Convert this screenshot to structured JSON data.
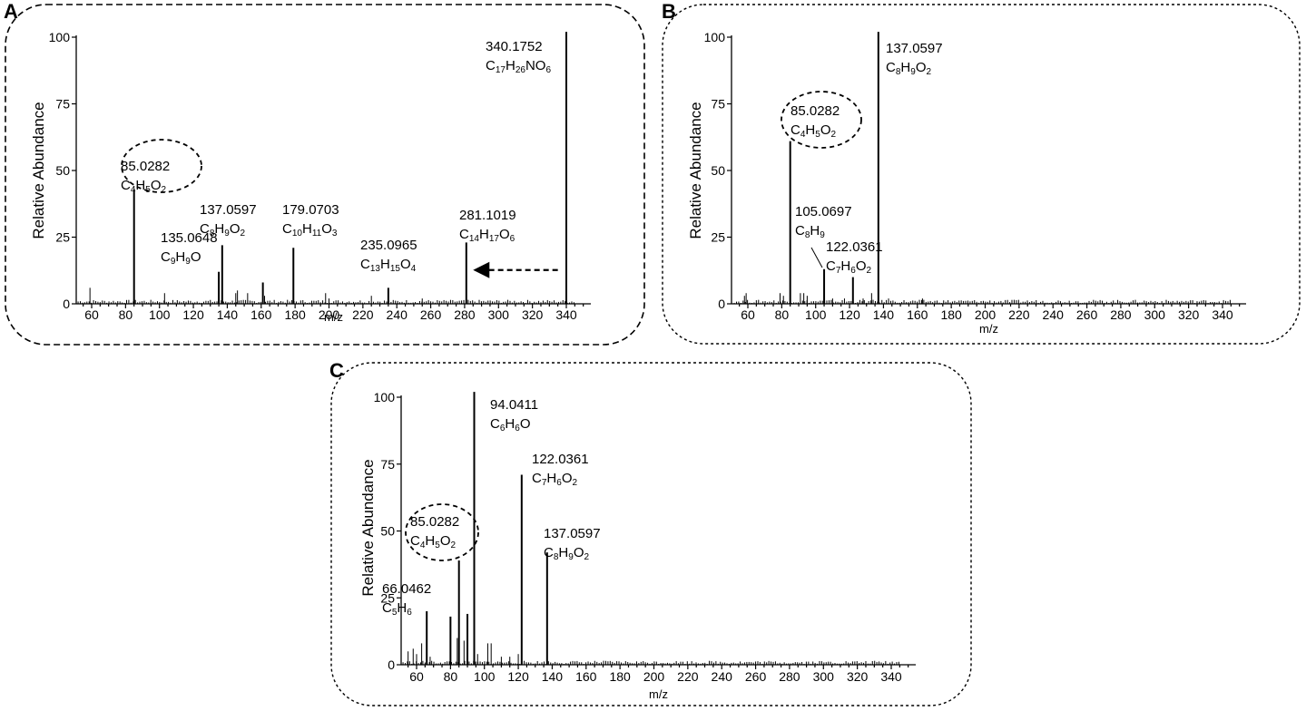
{
  "chart_data": [
    {
      "panel": "A",
      "type": "bar",
      "ylabel": "Relative Abundance",
      "xlabel": "m/z",
      "xlim": [
        50,
        352
      ],
      "ylim": [
        0,
        100
      ],
      "xticks": [
        60,
        80,
        100,
        120,
        140,
        160,
        180,
        200,
        220,
        240,
        260,
        280,
        300,
        320,
        340
      ],
      "yticks": [
        0,
        25,
        50,
        75,
        100
      ],
      "peaks": [
        {
          "x": 85,
          "y": 43
        },
        {
          "x": 135,
          "y": 12
        },
        {
          "x": 137,
          "y": 22
        },
        {
          "x": 179,
          "y": 21
        },
        {
          "x": 161,
          "y": 8
        },
        {
          "x": 235,
          "y": 6
        },
        {
          "x": 281,
          "y": 23
        },
        {
          "x": 340,
          "y": 102
        }
      ],
      "minor_peaks": [
        {
          "x": 59,
          "y": 6
        },
        {
          "x": 103,
          "y": 4
        },
        {
          "x": 145,
          "y": 4
        },
        {
          "x": 146,
          "y": 5
        },
        {
          "x": 152,
          "y": 4
        },
        {
          "x": 162,
          "y": 3
        },
        {
          "x": 198,
          "y": 4
        },
        {
          "x": 200,
          "y": 2
        },
        {
          "x": 225,
          "y": 3
        },
        {
          "x": 255,
          "y": 2
        }
      ],
      "annotations": [
        {
          "x": 85,
          "y": 60,
          "lines": [
            [
              {
                "t": "85.0282"
              }
            ],
            [
              {
                "t": "C"
              },
              {
                "t": "4",
                "s": 1
              },
              {
                "t": "H"
              },
              {
                "t": "5",
                "s": 1
              },
              {
                "t": "O"
              },
              {
                "t": "2",
                "s": 1
              }
            ]
          ],
          "circled": true
        },
        {
          "x": 137,
          "y": 40,
          "lines": [
            [
              {
                "t": "137.0597"
              }
            ],
            [
              {
                "t": "C"
              },
              {
                "t": "8",
                "s": 1
              },
              {
                "t": "H"
              },
              {
                "t": "9",
                "s": 1
              },
              {
                "t": "O"
              },
              {
                "t": "2",
                "s": 1
              }
            ]
          ]
        },
        {
          "x": 135,
          "y": 20,
          "lines": [
            [
              {
                "t": "135.0648"
              }
            ],
            [
              {
                "t": "C"
              },
              {
                "t": "9",
                "s": 1
              },
              {
                "t": "H"
              },
              {
                "t": "9",
                "s": 1
              },
              {
                "t": "O"
              }
            ]
          ]
        },
        {
          "x": 179,
          "y": 40,
          "lines": [
            [
              {
                "t": "179.0703"
              }
            ],
            [
              {
                "t": "C"
              },
              {
                "t": "10",
                "s": 1
              },
              {
                "t": "H"
              },
              {
                "t": "11",
                "s": 1
              },
              {
                "t": "O"
              },
              {
                "t": "3",
                "s": 1
              }
            ]
          ]
        },
        {
          "x": 235,
          "y": 20,
          "lines": [
            [
              {
                "t": "235.0965"
              }
            ],
            [
              {
                "t": "C"
              },
              {
                "t": "13",
                "s": 1
              },
              {
                "t": "H"
              },
              {
                "t": "15",
                "s": 1
              },
              {
                "t": "O"
              },
              {
                "t": "4",
                "s": 1
              }
            ]
          ]
        },
        {
          "x": 281,
          "y": 30,
          "lines": [
            [
              {
                "t": "281.1019"
              }
            ],
            [
              {
                "t": "C"
              },
              {
                "t": "14",
                "s": 1
              },
              {
                "t": "H"
              },
              {
                "t": "17",
                "s": 1
              },
              {
                "t": "O"
              },
              {
                "t": "6",
                "s": 1
              }
            ]
          ]
        },
        {
          "x": 340,
          "y": 90,
          "lines": [
            [
              {
                "t": "340.1752"
              }
            ],
            [
              {
                "t": "C"
              },
              {
                "t": "17",
                "s": 1
              },
              {
                "t": "H"
              },
              {
                "t": "26",
                "s": 1
              },
              {
                "t": "N"
              },
              {
                "t": "O"
              },
              {
                "t": "6",
                "s": 1
              }
            ]
          ]
        }
      ],
      "arrow": {
        "from_x": 335,
        "to_x": 285,
        "y": 12
      }
    },
    {
      "panel": "B",
      "type": "bar",
      "ylabel": "Relative Abundance",
      "xlabel": "m/z",
      "xlim": [
        50,
        352
      ],
      "ylim": [
        0,
        100
      ],
      "xticks": [
        60,
        80,
        100,
        120,
        140,
        160,
        180,
        200,
        220,
        240,
        260,
        280,
        300,
        320,
        340
      ],
      "yticks": [
        0,
        25,
        50,
        75,
        100
      ],
      "peaks": [
        {
          "x": 85,
          "y": 61
        },
        {
          "x": 105,
          "y": 13
        },
        {
          "x": 122,
          "y": 10
        },
        {
          "x": 137,
          "y": 102
        }
      ],
      "minor_peaks": [
        {
          "x": 58,
          "y": 3
        },
        {
          "x": 59,
          "y": 4
        },
        {
          "x": 79,
          "y": 4
        },
        {
          "x": 81,
          "y": 3
        },
        {
          "x": 91,
          "y": 4
        },
        {
          "x": 93,
          "y": 4
        },
        {
          "x": 95,
          "y": 3
        },
        {
          "x": 110,
          "y": 2
        },
        {
          "x": 117,
          "y": 2
        },
        {
          "x": 128,
          "y": 2
        },
        {
          "x": 133,
          "y": 4
        },
        {
          "x": 143,
          "y": 2
        },
        {
          "x": 163,
          "y": 2
        }
      ],
      "annotations": [
        {
          "x": 137,
          "y": 90,
          "lines": [
            [
              {
                "t": "137.0597"
              }
            ],
            [
              {
                "t": "C"
              },
              {
                "t": "8",
                "s": 1
              },
              {
                "t": "H"
              },
              {
                "t": "9",
                "s": 1
              },
              {
                "t": "O"
              },
              {
                "t": "2",
                "s": 1
              }
            ]
          ]
        },
        {
          "x": 85,
          "y": 70,
          "lines": [
            [
              {
                "t": "85.0282"
              }
            ],
            [
              {
                "t": "C"
              },
              {
                "t": "4",
                "s": 1
              },
              {
                "t": "H"
              },
              {
                "t": "5",
                "s": 1
              },
              {
                "t": "O"
              },
              {
                "t": "2",
                "s": 1
              }
            ]
          ],
          "circled": true
        },
        {
          "x": 105,
          "y": 28,
          "lines": [
            [
              {
                "t": "105.0697"
              }
            ],
            [
              {
                "t": "C"
              },
              {
                "t": "8",
                "s": 1
              },
              {
                "t": "H"
              },
              {
                "t": "9",
                "s": 1
              }
            ]
          ]
        },
        {
          "x": 122,
          "y": 20,
          "lines": [
            [
              {
                "t": "122.0361"
              }
            ],
            [
              {
                "t": "C"
              },
              {
                "t": "7",
                "s": 1
              },
              {
                "t": "H"
              },
              {
                "t": "6",
                "s": 1
              },
              {
                "t": "O"
              },
              {
                "t": "2",
                "s": 1
              }
            ]
          ]
        }
      ]
    },
    {
      "panel": "C",
      "type": "bar",
      "ylabel": "Relative Abundance",
      "xlabel": "m/z",
      "xlim": [
        50,
        352
      ],
      "ylim": [
        0,
        100
      ],
      "xticks": [
        60,
        80,
        100,
        120,
        140,
        160,
        180,
        200,
        220,
        240,
        260,
        280,
        300,
        320,
        340
      ],
      "yticks": [
        0,
        25,
        50,
        75,
        100
      ],
      "peaks": [
        {
          "x": 66,
          "y": 20
        },
        {
          "x": 80,
          "y": 18
        },
        {
          "x": 85,
          "y": 39
        },
        {
          "x": 90,
          "y": 19
        },
        {
          "x": 94,
          "y": 102
        },
        {
          "x": 122,
          "y": 71
        },
        {
          "x": 137,
          "y": 42
        }
      ],
      "minor_peaks": [
        {
          "x": 55,
          "y": 5
        },
        {
          "x": 58,
          "y": 6
        },
        {
          "x": 60,
          "y": 4
        },
        {
          "x": 63,
          "y": 8
        },
        {
          "x": 68,
          "y": 3
        },
        {
          "x": 84,
          "y": 10
        },
        {
          "x": 88,
          "y": 9
        },
        {
          "x": 96,
          "y": 4
        },
        {
          "x": 102,
          "y": 8
        },
        {
          "x": 104,
          "y": 8
        },
        {
          "x": 110,
          "y": 3
        },
        {
          "x": 115,
          "y": 3
        },
        {
          "x": 120,
          "y": 4
        }
      ],
      "annotations": [
        {
          "x": 94,
          "y": 95,
          "lines": [
            [
              {
                "t": "94.0411"
              }
            ],
            [
              {
                "t": "C"
              },
              {
                "t": "6",
                "s": 1
              },
              {
                "t": "H"
              },
              {
                "t": "6",
                "s": 1
              },
              {
                "t": "O"
              }
            ]
          ]
        },
        {
          "x": 122,
          "y": 74,
          "lines": [
            [
              {
                "t": "122.0361"
              }
            ],
            [
              {
                "t": "C"
              },
              {
                "t": "7",
                "s": 1
              },
              {
                "t": "H"
              },
              {
                "t": "6",
                "s": 1
              },
              {
                "t": "O"
              },
              {
                "t": "2",
                "s": 1
              }
            ]
          ]
        },
        {
          "x": 137,
          "y": 48,
          "lines": [
            [
              {
                "t": "137.0597"
              }
            ],
            [
              {
                "t": "C"
              },
              {
                "t": "8",
                "s": 1
              },
              {
                "t": "H"
              },
              {
                "t": "9",
                "s": 1
              },
              {
                "t": "O"
              },
              {
                "t": "2",
                "s": 1
              }
            ]
          ]
        },
        {
          "x": 85,
          "y": 54,
          "lines": [
            [
              {
                "t": "85.0282"
              }
            ],
            [
              {
                "t": "C"
              },
              {
                "t": "4",
                "s": 1
              },
              {
                "t": "H"
              },
              {
                "t": "5",
                "s": 1
              },
              {
                "t": "O"
              },
              {
                "t": "2",
                "s": 1
              }
            ]
          ],
          "circled": true
        },
        {
          "x": 66,
          "y": 27,
          "lines": [
            [
              {
                "t": "66.0462"
              }
            ],
            [
              {
                "t": "C"
              },
              {
                "t": "5",
                "s": 1
              },
              {
                "t": "H"
              },
              {
                "t": "6",
                "s": 1
              }
            ]
          ]
        }
      ]
    }
  ]
}
